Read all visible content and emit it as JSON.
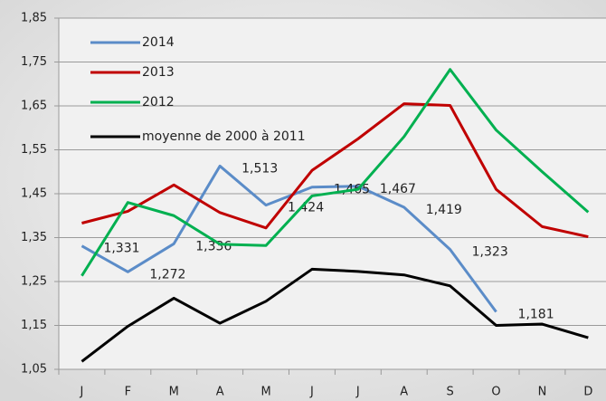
{
  "chart_data": {
    "type": "line",
    "categories": [
      "J",
      "F",
      "M",
      "A",
      "M",
      "J",
      "J",
      "A",
      "S",
      "O",
      "N",
      "D"
    ],
    "series": [
      {
        "name": "2014",
        "color": "#5b8cc8",
        "values": [
          1.331,
          1.272,
          1.336,
          1.513,
          1.424,
          1.465,
          1.467,
          1.419,
          1.323,
          1.181,
          null,
          null
        ],
        "value_labels": [
          "1,331",
          "1,272",
          "1,336",
          "1,513",
          "1,424",
          "1,465",
          "1,467",
          "1,419",
          "1,323",
          "1,181",
          null,
          null
        ]
      },
      {
        "name": "2013",
        "color": "#c00000",
        "values": [
          1.383,
          1.41,
          1.47,
          1.407,
          1.372,
          1.503,
          1.575,
          1.655,
          1.651,
          1.46,
          1.375,
          1.352
        ]
      },
      {
        "name": "2012",
        "color": "#00b050",
        "values": [
          1.263,
          1.43,
          1.4,
          1.335,
          1.332,
          1.445,
          1.46,
          1.58,
          1.733,
          1.595,
          1.5,
          1.408
        ]
      },
      {
        "name": "moyenne de 2000 à 2011",
        "color": "#000000",
        "values": [
          1.068,
          1.148,
          1.212,
          1.155,
          1.205,
          1.278,
          1.273,
          1.265,
          1.24,
          1.15,
          1.153,
          1.122
        ]
      }
    ],
    "ylim": [
      1.05,
      1.85
    ],
    "yticks": [
      {
        "value": 1.05,
        "label": "1,05"
      },
      {
        "value": 1.15,
        "label": "1,15"
      },
      {
        "value": 1.25,
        "label": "1,25"
      },
      {
        "value": 1.35,
        "label": "1,35"
      },
      {
        "value": 1.45,
        "label": "1,45"
      },
      {
        "value": 1.55,
        "label": "1,55"
      },
      {
        "value": 1.65,
        "label": "1,65"
      },
      {
        "value": 1.75,
        "label": "1,75"
      },
      {
        "value": 1.85,
        "label": "1,85"
      }
    ],
    "grid": true,
    "legend": "upper left"
  }
}
